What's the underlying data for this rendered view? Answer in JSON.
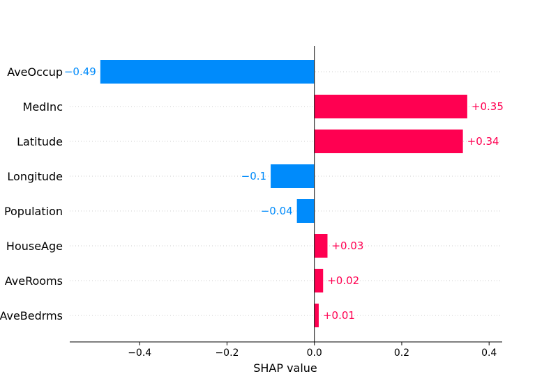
{
  "chart_data": {
    "type": "bar",
    "orientation": "horizontal",
    "title": "",
    "xlabel": "SHAP value",
    "ylabel": "",
    "xlim": [
      -0.56,
      0.43
    ],
    "xticks": [
      -0.4,
      -0.2,
      0.0,
      0.2,
      0.4
    ],
    "xtick_labels": [
      "−0.4",
      "−0.2",
      "0.0",
      "0.2",
      "0.4"
    ],
    "grid": "horizontal dotted",
    "categories": [
      "AveOccup",
      "MedInc",
      "Latitude",
      "Longitude",
      "Population",
      "HouseAge",
      "AveRooms",
      "AveBedrms"
    ],
    "values": [
      -0.49,
      0.35,
      0.34,
      -0.1,
      -0.04,
      0.03,
      0.02,
      0.01
    ],
    "value_labels": [
      "−0.49",
      "+0.35",
      "+0.34",
      "−0.1",
      "−0.04",
      "+0.03",
      "+0.02",
      "+0.01"
    ],
    "colors": {
      "positive": "#ff0051",
      "negative": "#008bfb"
    }
  }
}
